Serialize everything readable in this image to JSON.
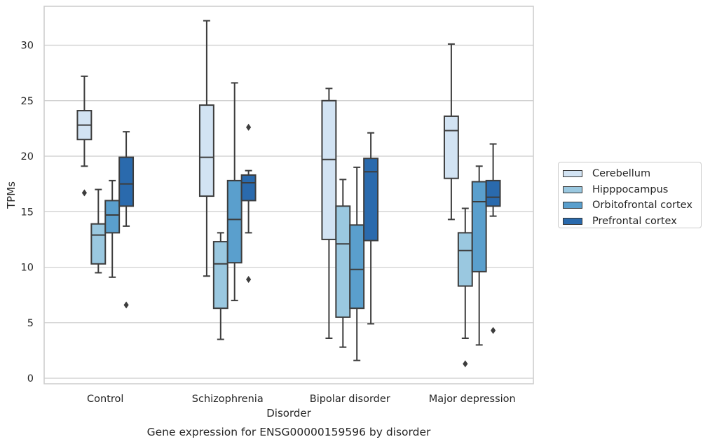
{
  "chart_data": {
    "type": "box",
    "xlabel": "Disorder",
    "ylabel": "TPMs",
    "caption": "Gene expression for ENSG00000159596 by disorder",
    "ylim": [
      -0.5,
      33.5
    ],
    "yticks": [
      0,
      5,
      10,
      15,
      20,
      25,
      30
    ],
    "grid": "horizontal",
    "legend_placement": "center-right (outside)",
    "categories": [
      "Control",
      "Schizophrenia",
      "Bipolar disorder",
      "Major depression"
    ],
    "series": [
      {
        "name": "Cerebellum",
        "color": "#d2e3f3",
        "boxes": [
          {
            "whisker_low": 19.1,
            "q1": 21.5,
            "median": 22.8,
            "q3": 24.1,
            "whisker_high": 27.2,
            "outliers": [
              16.7
            ]
          },
          {
            "whisker_low": 9.2,
            "q1": 16.4,
            "median": 19.9,
            "q3": 24.6,
            "whisker_high": 32.2,
            "outliers": []
          },
          {
            "whisker_low": 3.6,
            "q1": 12.5,
            "median": 19.7,
            "q3": 25.0,
            "whisker_high": 26.1,
            "outliers": []
          },
          {
            "whisker_low": 14.3,
            "q1": 18.0,
            "median": 22.3,
            "q3": 23.6,
            "whisker_high": 30.1,
            "outliers": []
          }
        ]
      },
      {
        "name": "Hipppocampus",
        "color": "#9ac8e0",
        "boxes": [
          {
            "whisker_low": 9.5,
            "q1": 10.3,
            "median": 12.9,
            "q3": 13.9,
            "whisker_high": 17.0,
            "outliers": []
          },
          {
            "whisker_low": 3.5,
            "q1": 6.3,
            "median": 10.3,
            "q3": 12.3,
            "whisker_high": 13.1,
            "outliers": []
          },
          {
            "whisker_low": 2.8,
            "q1": 5.5,
            "median": 12.1,
            "q3": 15.5,
            "whisker_high": 17.9,
            "outliers": []
          },
          {
            "whisker_low": 3.6,
            "q1": 8.3,
            "median": 11.5,
            "q3": 13.1,
            "whisker_high": 15.3,
            "outliers": [
              1.3
            ]
          }
        ]
      },
      {
        "name": "Orbitofrontal cortex",
        "color": "#5a9fcd",
        "boxes": [
          {
            "whisker_low": 9.1,
            "q1": 13.1,
            "median": 14.7,
            "q3": 16.0,
            "whisker_high": 17.8,
            "outliers": []
          },
          {
            "whisker_low": 7.0,
            "q1": 10.4,
            "median": 14.3,
            "q3": 17.8,
            "whisker_high": 26.6,
            "outliers": []
          },
          {
            "whisker_low": 1.6,
            "q1": 6.3,
            "median": 9.8,
            "q3": 13.8,
            "whisker_high": 19.0,
            "outliers": []
          },
          {
            "whisker_low": 3.0,
            "q1": 9.6,
            "median": 15.9,
            "q3": 17.7,
            "whisker_high": 19.1,
            "outliers": []
          }
        ]
      },
      {
        "name": "Prefrontal cortex",
        "color": "#2a6aad",
        "boxes": [
          {
            "whisker_low": 13.7,
            "q1": 15.5,
            "median": 17.5,
            "q3": 19.9,
            "whisker_high": 22.2,
            "outliers": [
              6.6
            ]
          },
          {
            "whisker_low": 13.1,
            "q1": 16.0,
            "median": 17.6,
            "q3": 18.3,
            "whisker_high": 18.7,
            "outliers": [
              8.9,
              22.6
            ]
          },
          {
            "whisker_low": 4.9,
            "q1": 12.4,
            "median": 18.6,
            "q3": 19.8,
            "whisker_high": 22.1,
            "outliers": []
          },
          {
            "whisker_low": 14.6,
            "q1": 15.5,
            "median": 16.3,
            "q3": 17.8,
            "whisker_high": 21.1,
            "outliers": [
              4.3
            ]
          }
        ]
      }
    ]
  }
}
